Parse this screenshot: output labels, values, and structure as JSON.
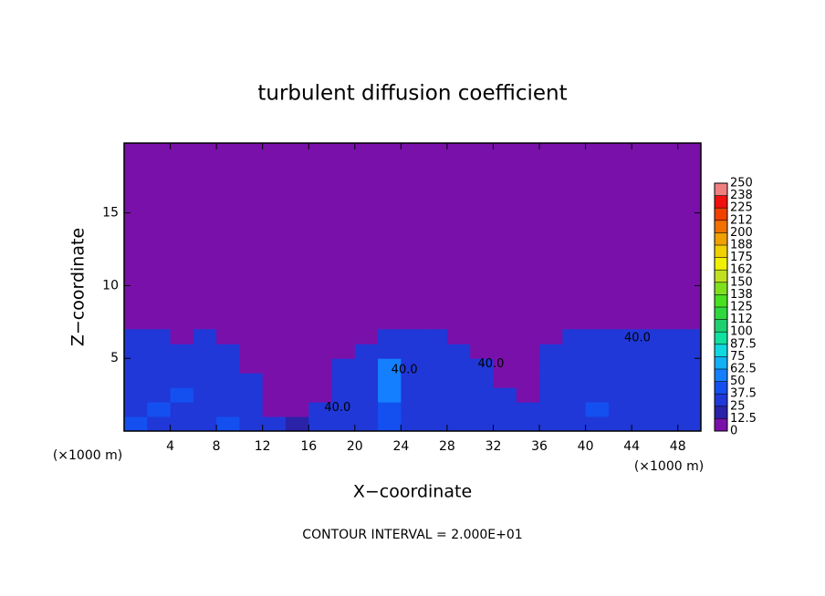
{
  "chart_data": {
    "type": "filled-contour",
    "title": "turbulent diffusion coefficient",
    "x_label": "X−coordinate",
    "y_label": "Z−coordinate",
    "x_unit": "(×1000 m)",
    "x_unit_right": "(×1000 m)",
    "footer": "CONTOUR INTERVAL = 2.000E+01",
    "xlim": [
      0,
      50
    ],
    "ylim": [
      0,
      19.8
    ],
    "xticks": [
      4,
      8,
      12,
      16,
      20,
      24,
      28,
      32,
      36,
      40,
      44,
      48
    ],
    "yticks": [
      5,
      10,
      15
    ],
    "x": [
      1,
      3,
      5,
      7,
      9,
      11,
      13,
      15,
      17,
      19,
      21,
      23,
      25,
      27,
      29,
      31,
      33,
      35,
      37,
      39,
      41,
      43,
      45,
      47,
      49
    ],
    "y": [
      0.5,
      1.5,
      2.5,
      3.5,
      4.5,
      5.5,
      6.5
    ],
    "z": [
      [
        40,
        30,
        35,
        30,
        45,
        30,
        25,
        20,
        30,
        35,
        30,
        40,
        35,
        30,
        30,
        35,
        30,
        25,
        30,
        35,
        30,
        35,
        30,
        30,
        35
      ],
      [
        30,
        40,
        30,
        35,
        30,
        30,
        0,
        0,
        25,
        30,
        35,
        40,
        30,
        35,
        30,
        30,
        30,
        25,
        30,
        30,
        40,
        30,
        35,
        30,
        30
      ],
      [
        35,
        30,
        40,
        30,
        30,
        35,
        0,
        0,
        0,
        30,
        30,
        55,
        35,
        30,
        35,
        30,
        30,
        0,
        30,
        35,
        30,
        30,
        30,
        35,
        30
      ],
      [
        30,
        35,
        30,
        30,
        35,
        25,
        0,
        0,
        0,
        35,
        30,
        60,
        30,
        35,
        30,
        30,
        0,
        0,
        30,
        30,
        35,
        30,
        30,
        30,
        35
      ],
      [
        30,
        30,
        35,
        30,
        30,
        0,
        0,
        0,
        0,
        30,
        35,
        55,
        35,
        30,
        30,
        25,
        0,
        0,
        30,
        35,
        30,
        35,
        30,
        30,
        30
      ],
      [
        35,
        30,
        30,
        35,
        30,
        0,
        0,
        0,
        0,
        0,
        30,
        30,
        30,
        35,
        30,
        0,
        0,
        0,
        30,
        30,
        30,
        30,
        30,
        35,
        30
      ],
      [
        30,
        35,
        0,
        30,
        0,
        0,
        0,
        0,
        0,
        0,
        0,
        30,
        30,
        30,
        0,
        0,
        0,
        0,
        0,
        30,
        30,
        30,
        25,
        30,
        30
      ]
    ],
    "annotations": [
      {
        "text": "40.0",
        "x": 44.5,
        "y": 6.4
      },
      {
        "text": "40.0",
        "x": 31.8,
        "y": 4.6
      },
      {
        "text": "40.0",
        "x": 24.3,
        "y": 4.2
      },
      {
        "text": "40.0",
        "x": 18.5,
        "y": 1.6
      }
    ],
    "clim": [
      0,
      250
    ],
    "colorbar_ticks": [
      0,
      12.5,
      25,
      37.5,
      50,
      62.5,
      75,
      87.5,
      100,
      {
        "value": 112.5,
        "label": "112"
      },
      125,
      {
        "value": 137.5,
        "label": "138"
      },
      150,
      {
        "value": 162.5,
        "label": "162"
      },
      175,
      {
        "value": 187.5,
        "label": "188"
      },
      200,
      {
        "value": 212.5,
        "label": "212"
      },
      225,
      {
        "value": 237.5,
        "label": "238"
      },
      250
    ],
    "colors": [
      "#7a10aa",
      "#2a22a8",
      "#2038d8",
      "#1450f0",
      "#1480ff",
      "#12b0f4",
      "#10d8e0",
      "#10e0a0",
      "#20d070",
      "#30d840",
      "#48e020",
      "#80e020",
      "#c0e020",
      "#f0f000",
      "#f0d000",
      "#f0a000",
      "#f07000",
      "#f04000",
      "#f01010",
      "#f08080"
    ]
  }
}
